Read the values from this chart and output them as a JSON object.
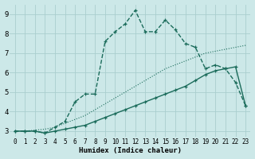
{
  "xlabel": "Humidex (Indice chaleur)",
  "bg_color": "#cce8e8",
  "grid_color": "#aacece",
  "line_color": "#1a6b5a",
  "xlim": [
    -0.5,
    23.5
  ],
  "ylim": [
    2.7,
    9.5
  ],
  "xticks": [
    0,
    1,
    2,
    3,
    4,
    5,
    6,
    7,
    8,
    9,
    10,
    11,
    12,
    13,
    14,
    15,
    16,
    17,
    18,
    19,
    20,
    21,
    22,
    23
  ],
  "yticks": [
    3,
    4,
    5,
    6,
    7,
    8,
    9
  ],
  "line_dotted_x": [
    0,
    1,
    2,
    3,
    4,
    5,
    6,
    7,
    8,
    9,
    10,
    11,
    12,
    13,
    14,
    15,
    16,
    17,
    18,
    19,
    20,
    21,
    22,
    23
  ],
  "line_dotted_y": [
    3.0,
    3.0,
    3.05,
    3.1,
    3.2,
    3.4,
    3.6,
    3.8,
    4.1,
    4.4,
    4.7,
    5.0,
    5.3,
    5.6,
    5.9,
    6.2,
    6.4,
    6.6,
    6.8,
    7.0,
    7.1,
    7.2,
    7.3,
    7.4
  ],
  "line_dashed_x": [
    0,
    1,
    2,
    3,
    4,
    5,
    6,
    7,
    8,
    9,
    10,
    11,
    12,
    13,
    14,
    15,
    16,
    17,
    18,
    19,
    20,
    21,
    22,
    23
  ],
  "line_dashed_y": [
    3.0,
    3.0,
    3.0,
    2.9,
    3.2,
    3.5,
    4.5,
    4.9,
    4.9,
    7.6,
    8.1,
    8.5,
    9.2,
    8.1,
    8.1,
    8.7,
    8.2,
    7.5,
    7.3,
    6.2,
    6.4,
    6.2,
    5.5,
    4.3
  ],
  "line_solid_x": [
    0,
    1,
    2,
    3,
    4,
    5,
    6,
    7,
    8,
    9,
    10,
    11,
    12,
    13,
    14,
    15,
    16,
    17,
    18,
    19,
    20,
    21,
    22,
    23
  ],
  "line_solid_y": [
    3.0,
    3.0,
    3.0,
    2.9,
    3.0,
    3.1,
    3.2,
    3.3,
    3.5,
    3.7,
    3.9,
    4.1,
    4.3,
    4.5,
    4.7,
    4.9,
    5.1,
    5.3,
    5.6,
    5.9,
    6.1,
    6.2,
    6.3,
    4.3
  ]
}
